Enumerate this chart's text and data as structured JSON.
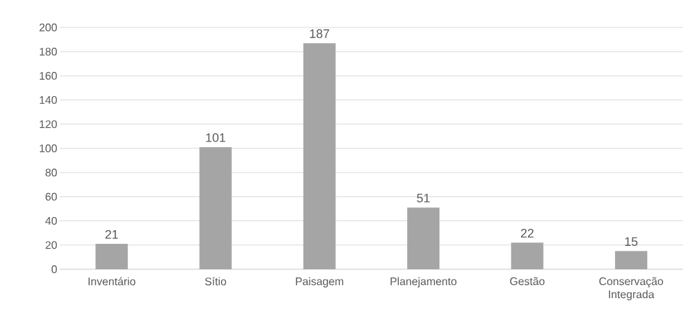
{
  "chart_data": {
    "type": "bar",
    "categories": [
      "Inventário",
      "Sítio",
      "Paisagem",
      "Planejamento",
      "Gestão",
      "Conservação Integrada"
    ],
    "values": [
      21,
      101,
      187,
      51,
      22,
      15
    ],
    "color": "#a5a5a5",
    "ylim": [
      0,
      200
    ],
    "yticks": [
      0,
      20,
      40,
      60,
      80,
      100,
      120,
      140,
      160,
      180,
      200
    ],
    "grid": "y",
    "data_labels": true
  }
}
